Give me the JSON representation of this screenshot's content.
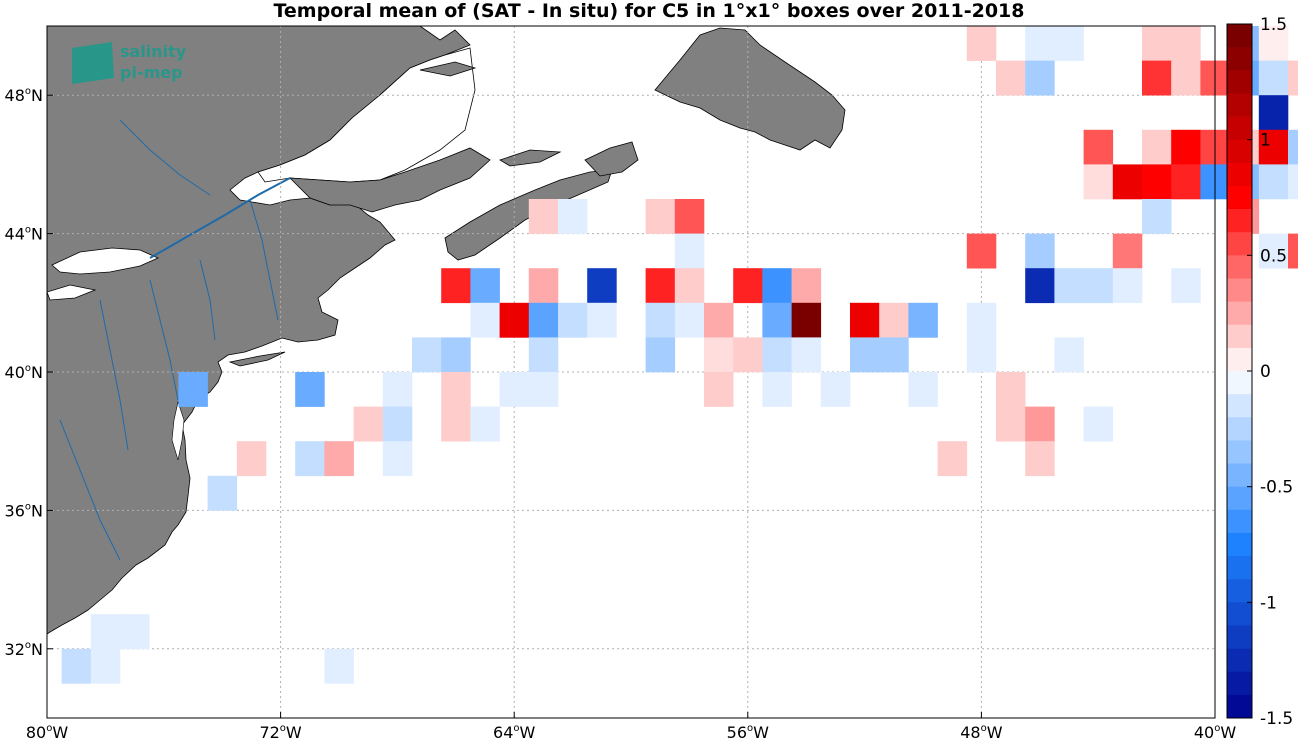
{
  "title": "Temporal mean of (SAT - In situ) for C5 in 1°x1° boxes over 2011-2018",
  "logo": {
    "line1": "salinity",
    "line2": "pi-mep"
  },
  "colors": {
    "land": "#808080",
    "coast": "#000000",
    "rivers": "#1f6aa8",
    "grid": "#b0b0b0",
    "logo": "#1a9a8c"
  },
  "axes": {
    "x_ticks": [
      {
        "lon": -80,
        "label": "80",
        "suffix": "W"
      },
      {
        "lon": -72,
        "label": "72",
        "suffix": "W"
      },
      {
        "lon": -64,
        "label": "64",
        "suffix": "W"
      },
      {
        "lon": -56,
        "label": "56",
        "suffix": "W"
      },
      {
        "lon": -48,
        "label": "48",
        "suffix": "W"
      },
      {
        "lon": -40,
        "label": "40",
        "suffix": "W"
      }
    ],
    "y_ticks": [
      {
        "lat": 48,
        "label": "48",
        "suffix": "N"
      },
      {
        "lat": 44,
        "label": "44",
        "suffix": "N"
      },
      {
        "lat": 40,
        "label": "40",
        "suffix": "N"
      },
      {
        "lat": 36,
        "label": "36",
        "suffix": "N"
      },
      {
        "lat": 32,
        "label": "32",
        "suffix": "N"
      }
    ],
    "lon_range": [
      -80,
      -40
    ],
    "lat_range": [
      30,
      50
    ]
  },
  "colorbar": {
    "range": [
      -1.5,
      1.5
    ],
    "ticks": [
      {
        "value": 1.5,
        "label": "1.5"
      },
      {
        "value": 1,
        "label": "1"
      },
      {
        "value": 0.5,
        "label": "0.5"
      },
      {
        "value": 0,
        "label": "0"
      },
      {
        "value": -0.5,
        "label": "-0.5"
      },
      {
        "value": -1,
        "label": "-1"
      },
      {
        "value": -1.5,
        "label": "-1.5"
      }
    ]
  },
  "chart_data": {
    "type": "heatmap",
    "title": "Temporal mean of (SAT - In situ) for C5 in 1°x1° boxes over 2011-2018",
    "cell_size_deg": 1,
    "value_range": [
      -1.5,
      1.5
    ],
    "cells": [
      {
        "lon": -48,
        "lat": 49.5,
        "v": 0.15
      },
      {
        "lon": -46,
        "lat": 49.5,
        "v": -0.1
      },
      {
        "lon": -45,
        "lat": 49.5,
        "v": -0.1
      },
      {
        "lon": -42,
        "lat": 49.5,
        "v": 0.15
      },
      {
        "lon": -41,
        "lat": 49.5,
        "v": 0.15
      },
      {
        "lon": -39,
        "lat": 49.5,
        "v": -0.4
      },
      {
        "lon": -38,
        "lat": 49.5,
        "v": 0.05
      },
      {
        "lon": -47,
        "lat": 48.5,
        "v": 0.15
      },
      {
        "lon": -46,
        "lat": 48.5,
        "v": -0.3
      },
      {
        "lon": -42,
        "lat": 48.5,
        "v": 0.6
      },
      {
        "lon": -41,
        "lat": 48.5,
        "v": 0.15
      },
      {
        "lon": -40,
        "lat": 48.5,
        "v": 0.5
      },
      {
        "lon": -39,
        "lat": 48.5,
        "v": -0.5
      },
      {
        "lon": -38,
        "lat": 48.5,
        "v": -0.2
      },
      {
        "lon": -37,
        "lat": 48.5,
        "v": 0.15
      },
      {
        "lon": -38,
        "lat": 47.5,
        "v": -1.3
      },
      {
        "lon": -44,
        "lat": 46.5,
        "v": 0.5
      },
      {
        "lon": -42,
        "lat": 46.5,
        "v": 0.15
      },
      {
        "lon": -41,
        "lat": 46.5,
        "v": 0.75
      },
      {
        "lon": -40,
        "lat": 46.5,
        "v": 0.55
      },
      {
        "lon": -39,
        "lat": 46.5,
        "v": 0.15
      },
      {
        "lon": -38,
        "lat": 46.5,
        "v": 0.85
      },
      {
        "lon": -37,
        "lat": 46.5,
        "v": -0.3
      },
      {
        "lon": -44,
        "lat": 45.5,
        "v": 0.1
      },
      {
        "lon": -43,
        "lat": 45.5,
        "v": 0.85
      },
      {
        "lon": -42,
        "lat": 45.5,
        "v": 0.75
      },
      {
        "lon": -41,
        "lat": 45.5,
        "v": 0.65
      },
      {
        "lon": -40,
        "lat": 45.5,
        "v": -0.65
      },
      {
        "lon": -39,
        "lat": 45.5,
        "v": -0.4
      },
      {
        "lon": -38,
        "lat": 45.5,
        "v": -0.2
      },
      {
        "lon": -37,
        "lat": 45.5,
        "v": -0.1
      },
      {
        "lon": -63,
        "lat": 44.5,
        "v": 0.15
      },
      {
        "lon": -62,
        "lat": 44.5,
        "v": -0.1
      },
      {
        "lon": -59,
        "lat": 44.5,
        "v": 0.15
      },
      {
        "lon": -58,
        "lat": 44.5,
        "v": 0.5
      },
      {
        "lon": -42,
        "lat": 44.5,
        "v": -0.2
      },
      {
        "lon": -39,
        "lat": 44.5,
        "v": 0.3
      },
      {
        "lon": -58,
        "lat": 43.5,
        "v": -0.1
      },
      {
        "lon": -48,
        "lat": 43.5,
        "v": 0.5
      },
      {
        "lon": -46,
        "lat": 43.5,
        "v": -0.3
      },
      {
        "lon": -43,
        "lat": 43.5,
        "v": 0.4
      },
      {
        "lon": -38,
        "lat": 43.5,
        "v": -0.1
      },
      {
        "lon": -37,
        "lat": 43.5,
        "v": 0.5
      },
      {
        "lon": -66,
        "lat": 42.5,
        "v": 0.65
      },
      {
        "lon": -65,
        "lat": 42.5,
        "v": -0.5
      },
      {
        "lon": -63,
        "lat": 42.5,
        "v": 0.25
      },
      {
        "lon": -61,
        "lat": 42.5,
        "v": -1.15
      },
      {
        "lon": -59,
        "lat": 42.5,
        "v": 0.65
      },
      {
        "lon": -58,
        "lat": 42.5,
        "v": 0.15
      },
      {
        "lon": -56,
        "lat": 42.5,
        "v": 0.65
      },
      {
        "lon": -55,
        "lat": 42.5,
        "v": -0.65
      },
      {
        "lon": -54,
        "lat": 42.5,
        "v": 0.25
      },
      {
        "lon": -46,
        "lat": 42.5,
        "v": -1.25
      },
      {
        "lon": -45,
        "lat": 42.5,
        "v": -0.2
      },
      {
        "lon": -44,
        "lat": 42.5,
        "v": -0.2
      },
      {
        "lon": -43,
        "lat": 42.5,
        "v": -0.1
      },
      {
        "lon": -41,
        "lat": 42.5,
        "v": -0.1
      },
      {
        "lon": -65,
        "lat": 41.5,
        "v": -0.1
      },
      {
        "lon": -64,
        "lat": 41.5,
        "v": 0.85
      },
      {
        "lon": -63,
        "lat": 41.5,
        "v": -0.55
      },
      {
        "lon": -62,
        "lat": 41.5,
        "v": -0.2
      },
      {
        "lon": -61,
        "lat": 41.5,
        "v": -0.1
      },
      {
        "lon": -59,
        "lat": 41.5,
        "v": -0.2
      },
      {
        "lon": -58,
        "lat": 41.5,
        "v": -0.1
      },
      {
        "lon": -57,
        "lat": 41.5,
        "v": 0.25
      },
      {
        "lon": -55,
        "lat": 41.5,
        "v": -0.5
      },
      {
        "lon": -54,
        "lat": 41.5,
        "v": 1.45
      },
      {
        "lon": -52,
        "lat": 41.5,
        "v": 0.85
      },
      {
        "lon": -51,
        "lat": 41.5,
        "v": 0.15
      },
      {
        "lon": -50,
        "lat": 41.5,
        "v": -0.45
      },
      {
        "lon": -48,
        "lat": 41.5,
        "v": -0.1
      },
      {
        "lon": -67,
        "lat": 40.5,
        "v": -0.2
      },
      {
        "lon": -66,
        "lat": 40.5,
        "v": -0.3
      },
      {
        "lon": -63,
        "lat": 40.5,
        "v": -0.2
      },
      {
        "lon": -59,
        "lat": 40.5,
        "v": -0.3
      },
      {
        "lon": -57,
        "lat": 40.5,
        "v": 0.1
      },
      {
        "lon": -56,
        "lat": 40.5,
        "v": 0.15
      },
      {
        "lon": -55,
        "lat": 40.5,
        "v": -0.2
      },
      {
        "lon": -54,
        "lat": 40.5,
        "v": -0.1
      },
      {
        "lon": -52,
        "lat": 40.5,
        "v": -0.3
      },
      {
        "lon": -51,
        "lat": 40.5,
        "v": -0.3
      },
      {
        "lon": -48,
        "lat": 40.5,
        "v": -0.1
      },
      {
        "lon": -45,
        "lat": 40.5,
        "v": -0.1
      },
      {
        "lon": -75,
        "lat": 39.5,
        "v": -0.5
      },
      {
        "lon": -71,
        "lat": 39.5,
        "v": -0.5
      },
      {
        "lon": -68,
        "lat": 39.5,
        "v": -0.1
      },
      {
        "lon": -66,
        "lat": 39.5,
        "v": 0.15
      },
      {
        "lon": -64,
        "lat": 39.5,
        "v": -0.1
      },
      {
        "lon": -63,
        "lat": 39.5,
        "v": -0.1
      },
      {
        "lon": -57,
        "lat": 39.5,
        "v": 0.15
      },
      {
        "lon": -55,
        "lat": 39.5,
        "v": -0.1
      },
      {
        "lon": -53,
        "lat": 39.5,
        "v": -0.1
      },
      {
        "lon": -50,
        "lat": 39.5,
        "v": -0.1
      },
      {
        "lon": -47,
        "lat": 39.5,
        "v": 0.15
      },
      {
        "lon": -69,
        "lat": 38.5,
        "v": 0.15
      },
      {
        "lon": -68,
        "lat": 38.5,
        "v": -0.2
      },
      {
        "lon": -66,
        "lat": 38.5,
        "v": 0.15
      },
      {
        "lon": -65,
        "lat": 38.5,
        "v": -0.1
      },
      {
        "lon": -47,
        "lat": 38.5,
        "v": 0.15
      },
      {
        "lon": -46,
        "lat": 38.5,
        "v": 0.3
      },
      {
        "lon": -44,
        "lat": 38.5,
        "v": -0.1
      },
      {
        "lon": -73,
        "lat": 37.5,
        "v": 0.15
      },
      {
        "lon": -71,
        "lat": 37.5,
        "v": -0.2
      },
      {
        "lon": -70,
        "lat": 37.5,
        "v": 0.25
      },
      {
        "lon": -68,
        "lat": 37.5,
        "v": -0.1
      },
      {
        "lon": -49,
        "lat": 37.5,
        "v": 0.15
      },
      {
        "lon": -46,
        "lat": 37.5,
        "v": 0.15
      },
      {
        "lon": -74,
        "lat": 36.5,
        "v": -0.2
      },
      {
        "lon": -78,
        "lat": 32.5,
        "v": -0.1
      },
      {
        "lon": -77,
        "lat": 32.5,
        "v": -0.1
      },
      {
        "lon": -79,
        "lat": 31.5,
        "v": -0.2
      },
      {
        "lon": -78,
        "lat": 31.5,
        "v": -0.1
      },
      {
        "lon": -70,
        "lat": 31.5,
        "v": -0.1
      }
    ]
  }
}
